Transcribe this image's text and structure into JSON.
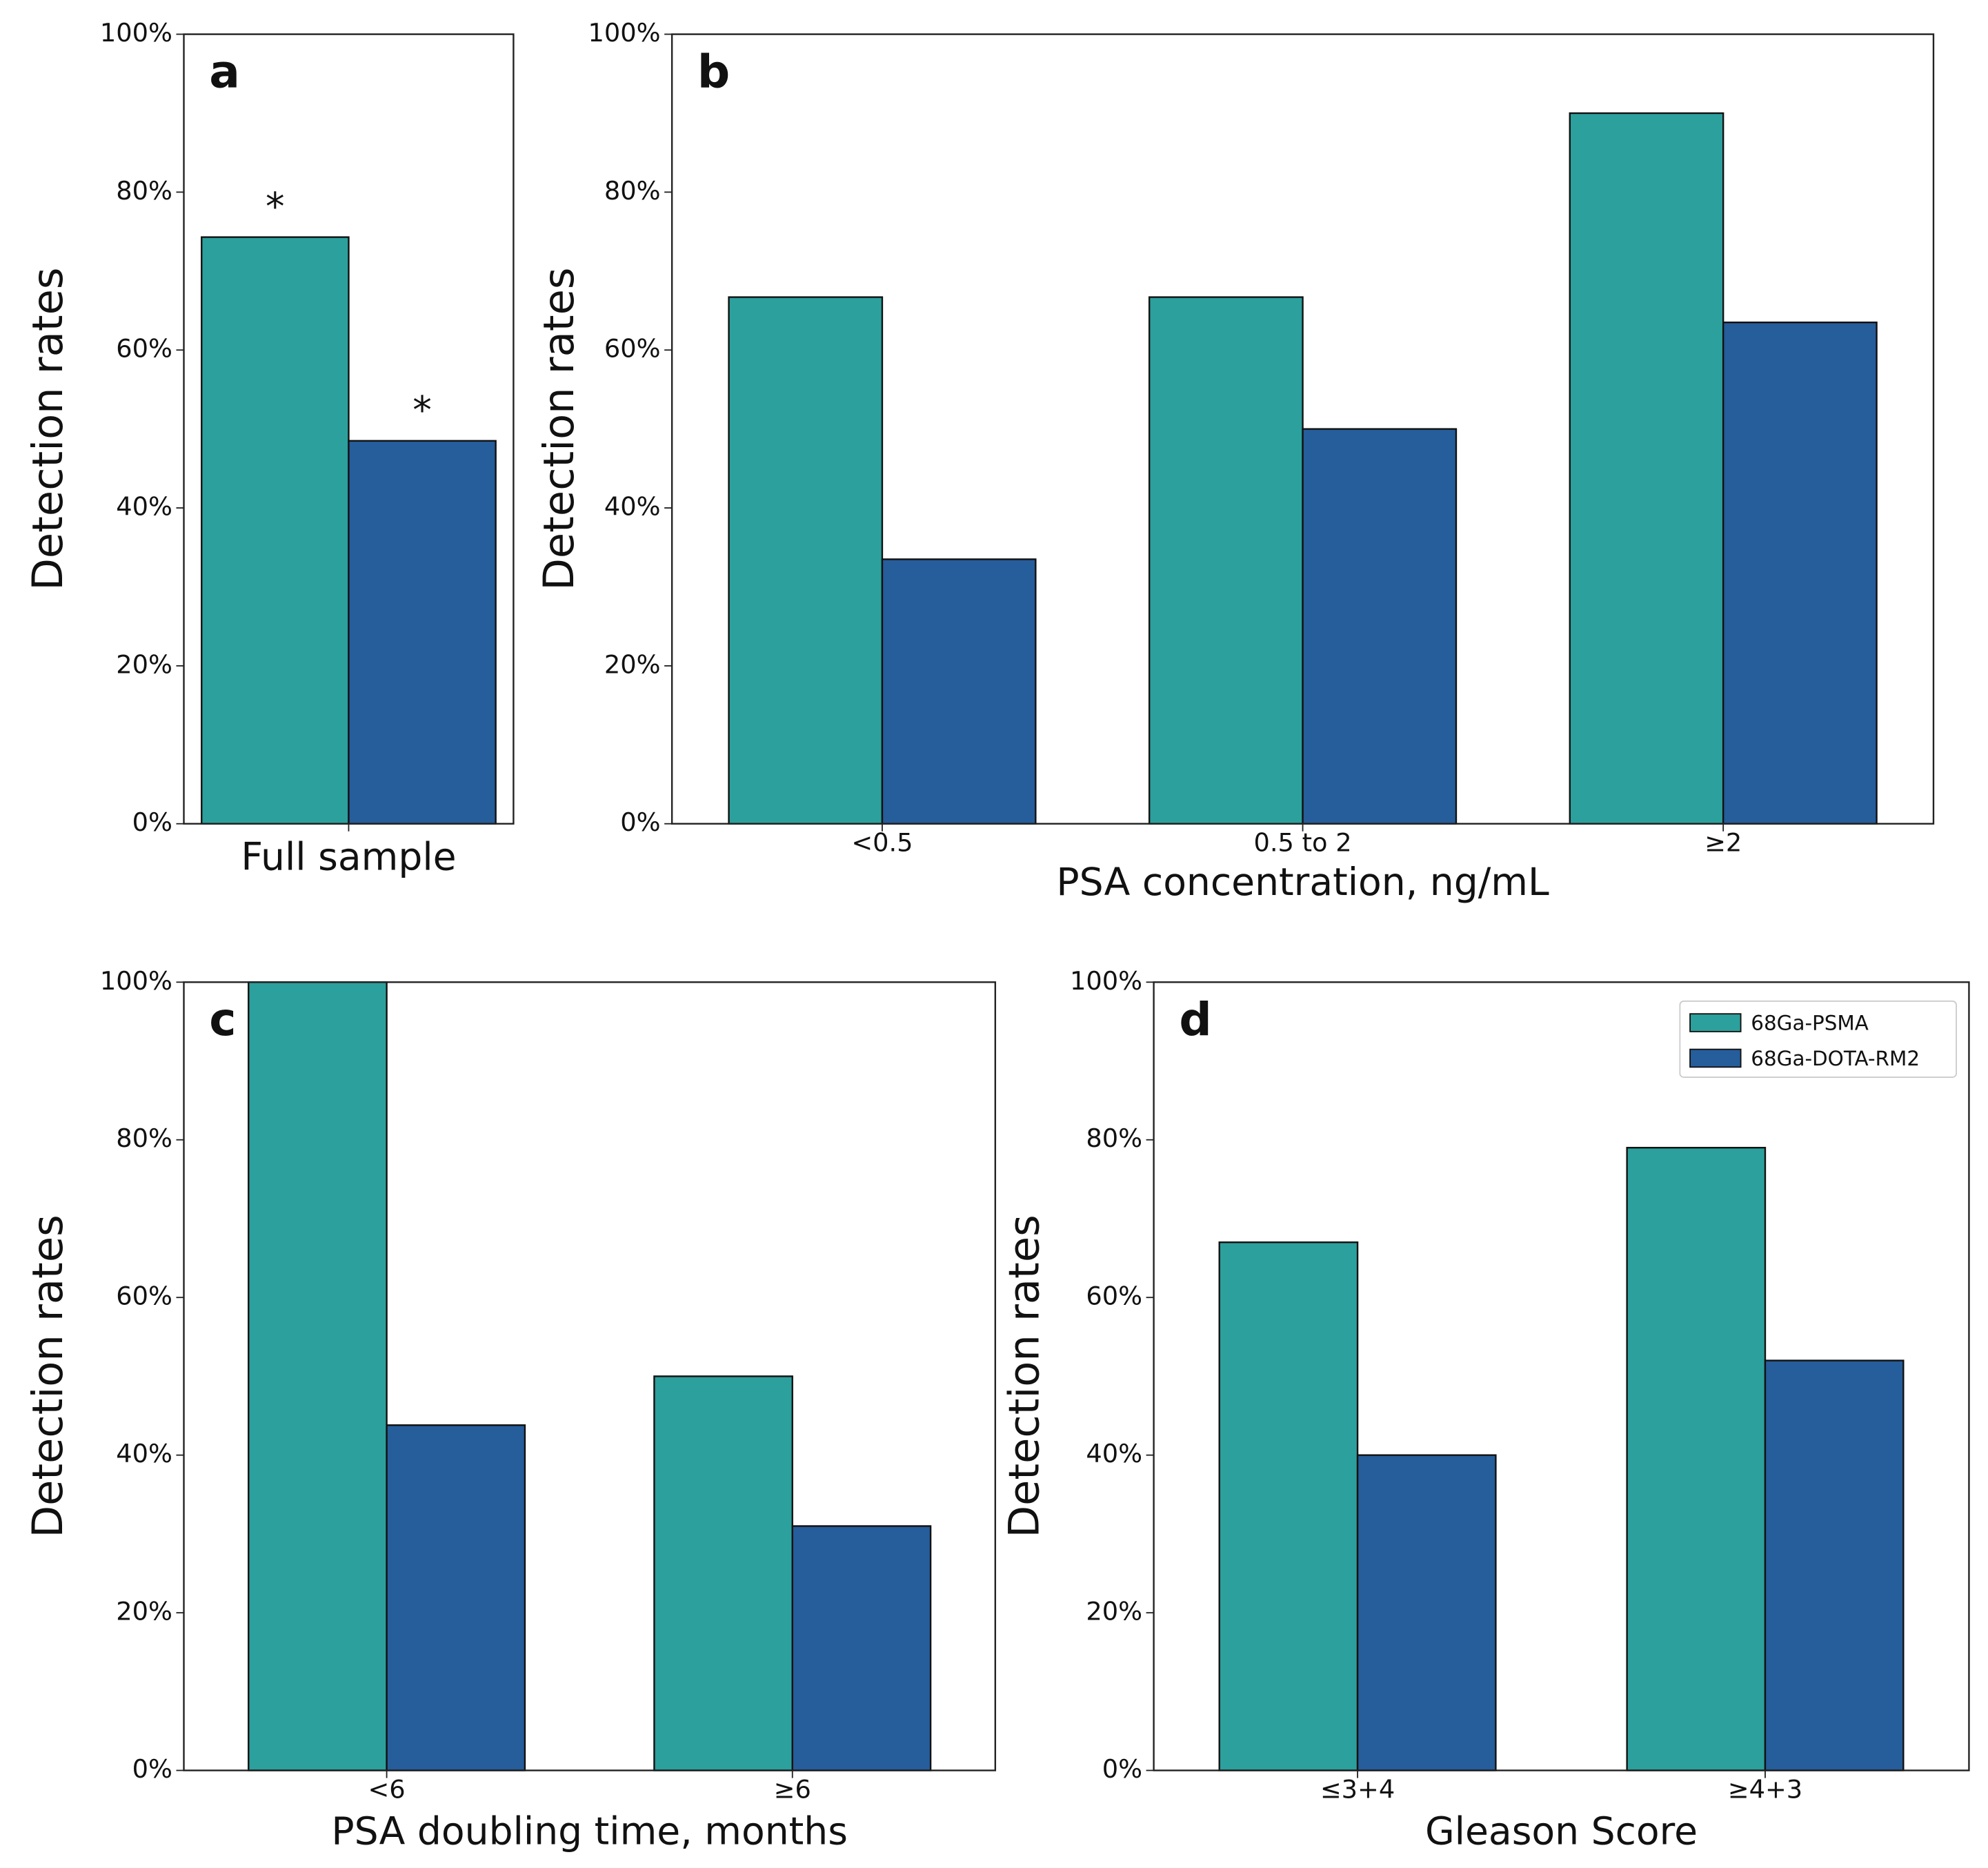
{
  "chart_data": [
    {
      "type": "bar",
      "panel_label": "a",
      "y_label": "Detection rates",
      "x_label": "Full sample",
      "categories": [
        null
      ],
      "series": [
        {
          "color": "#2ca09c",
          "values": [
            74.3
          ]
        },
        {
          "color": "#265d9b",
          "values": [
            48.5
          ]
        }
      ],
      "annotations": [
        "*",
        "*"
      ],
      "ylim": [
        0,
        100
      ],
      "yticks": [
        {
          "value": 0,
          "label": "0%"
        },
        {
          "value": 20,
          "label": "20%"
        },
        {
          "value": 40,
          "label": "40%"
        },
        {
          "value": 60,
          "label": "60%"
        },
        {
          "value": 80,
          "label": "80%"
        },
        {
          "value": 100,
          "label": "100%"
        }
      ]
    },
    {
      "type": "bar",
      "panel_label": "b",
      "y_label": "Detection rates",
      "x_label": "PSA concentration, ng/mL",
      "categories": [
        "<0.5",
        "0.5 to 2",
        "≥2"
      ],
      "series": [
        {
          "color": "#2ca09c",
          "values": [
            66.7,
            66.7,
            90
          ]
        },
        {
          "color": "#265d9b",
          "values": [
            33.5,
            50,
            63.5
          ]
        }
      ],
      "ylim": [
        0,
        100
      ],
      "yticks": [
        {
          "value": 0,
          "label": "0%"
        },
        {
          "value": 20,
          "label": "20%"
        },
        {
          "value": 40,
          "label": "40%"
        },
        {
          "value": 60,
          "label": "60%"
        },
        {
          "value": 80,
          "label": "80%"
        },
        {
          "value": 100,
          "label": "100%"
        }
      ]
    },
    {
      "type": "bar",
      "panel_label": "c",
      "y_label": "Detection rates",
      "x_label": "PSA doubling time, months",
      "categories": [
        "<6",
        "≥6"
      ],
      "series": [
        {
          "color": "#2ca09c",
          "values": [
            100,
            50
          ]
        },
        {
          "color": "#265d9b",
          "values": [
            43.8,
            31
          ]
        }
      ],
      "ylim": [
        0,
        100
      ],
      "yticks": [
        {
          "value": 0,
          "label": "0%"
        },
        {
          "value": 20,
          "label": "20%"
        },
        {
          "value": 40,
          "label": "40%"
        },
        {
          "value": 60,
          "label": "60%"
        },
        {
          "value": 80,
          "label": "80%"
        },
        {
          "value": 100,
          "label": "100%"
        }
      ]
    },
    {
      "type": "bar",
      "panel_label": "d",
      "y_label": "Detection rates",
      "x_label": "Gleason Score",
      "categories": [
        "≤3+4",
        "≥4+3"
      ],
      "series": [
        {
          "name": "68Ga-PSMA",
          "color": "#2ca09c",
          "values": [
            67,
            79
          ]
        },
        {
          "name": "68Ga-DOTA-RM2",
          "color": "#265d9b",
          "values": [
            40,
            52
          ]
        }
      ],
      "legend": "upper right",
      "ylim": [
        0,
        100
      ],
      "yticks": [
        {
          "value": 0,
          "label": "0%"
        },
        {
          "value": 20,
          "label": "20%"
        },
        {
          "value": 40,
          "label": "40%"
        },
        {
          "value": 60,
          "label": "60%"
        },
        {
          "value": 80,
          "label": "80%"
        },
        {
          "value": 100,
          "label": "100%"
        }
      ]
    }
  ]
}
